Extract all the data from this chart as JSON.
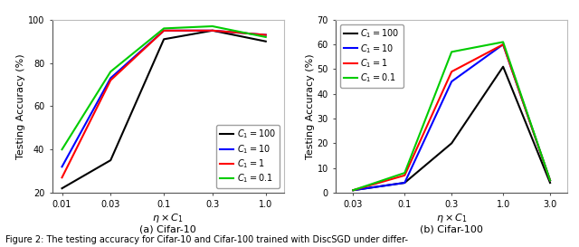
{
  "left": {
    "x": [
      0.01,
      0.03,
      0.1,
      0.3,
      1.0
    ],
    "series": {
      "C1=100": [
        22,
        35,
        91,
        95,
        90
      ],
      "C1=10": [
        32,
        73,
        95,
        95,
        93
      ],
      "C1=1": [
        27,
        72,
        95,
        95,
        93
      ],
      "C1=0.1": [
        40,
        76,
        96,
        97,
        92
      ]
    },
    "colors": {
      "C1=100": "#000000",
      "C1=10": "#0000ff",
      "C1=1": "#ff0000",
      "C1=0.1": "#00cc00"
    },
    "ylabel": "Testing Accuracy (%)",
    "xlabel": "$\\eta \\times C_1$",
    "xlim_log": [
      0.008,
      1.5
    ],
    "ylim": [
      20,
      100
    ],
    "xticks": [
      0.01,
      0.03,
      0.1,
      0.3,
      1.0
    ],
    "xticklabels": [
      "0.01",
      "0.03",
      "0.1",
      "0.3",
      "1.0"
    ],
    "yticks": [
      20,
      40,
      60,
      80,
      100
    ],
    "subtitle": "(a) Cifar-10",
    "legend_labels": [
      "$C_1 = 100$",
      "$C_1 = 10$",
      "$C_1 = 1$",
      "$C_1 = 0.1$"
    ],
    "legend_colors": [
      "#000000",
      "#0000ff",
      "#ff0000",
      "#00cc00"
    ],
    "legend_loc": "lower right"
  },
  "right": {
    "x": [
      0.03,
      0.1,
      0.3,
      1.0,
      3.0
    ],
    "series": {
      "C1=100": [
        1,
        4,
        20,
        51,
        4
      ],
      "C1=10": [
        1,
        4,
        45,
        60,
        5
      ],
      "C1=1": [
        1,
        7,
        49,
        60,
        5
      ],
      "C1=0.1": [
        1,
        8,
        57,
        61,
        5
      ]
    },
    "colors": {
      "C1=100": "#000000",
      "C1=10": "#0000ff",
      "C1=1": "#ff0000",
      "C1=0.1": "#00cc00"
    },
    "ylabel": "Testing Accuracy (%)",
    "xlabel": "$\\eta \\times C_1$",
    "xlim_log": [
      0.02,
      4.5
    ],
    "ylim": [
      0,
      70
    ],
    "xticks": [
      0.03,
      0.1,
      0.3,
      1.0,
      3.0
    ],
    "xticklabels": [
      "0.03",
      "0.1",
      "0.3",
      "1.0",
      "3.0"
    ],
    "yticks": [
      0,
      10,
      20,
      30,
      40,
      50,
      60,
      70
    ],
    "subtitle": "(b) Cifar-100",
    "legend_labels": [
      "$C_1 = 100$",
      "$C_1 = 10$",
      "$C_1 = 1$",
      "$C_1 = 0.1$"
    ],
    "legend_colors": [
      "#000000",
      "#0000ff",
      "#ff0000",
      "#00cc00"
    ],
    "legend_loc": "upper left"
  },
  "figure_caption": "Figure 2: The testing accuracy for Cifar-10 and Cifar-100 trained with DiscSGD under differ-",
  "linewidth": 1.5,
  "fontsize_label": 8,
  "fontsize_tick": 7,
  "fontsize_legend": 7,
  "fontsize_subtitle": 8,
  "fontsize_caption": 7
}
